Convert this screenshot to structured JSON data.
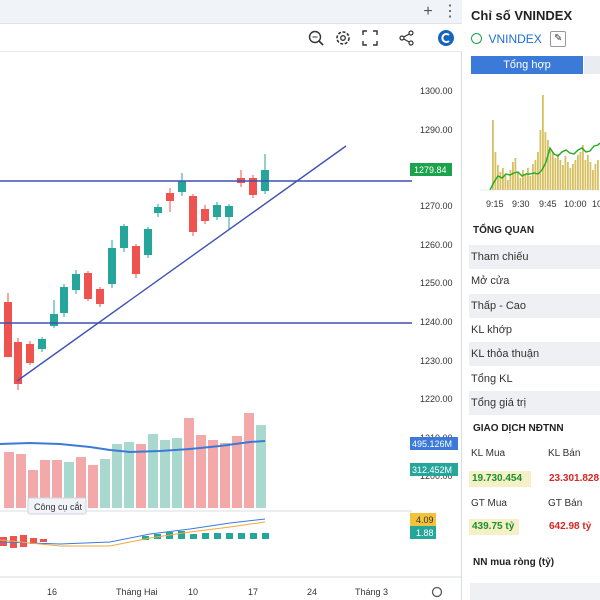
{
  "window": {
    "add_tab_label": "+",
    "menu_label": "⋮"
  },
  "chart": {
    "price_labels": [
      "1300.00",
      "1290.00",
      "1270.00",
      "1260.00",
      "1250.00",
      "1240.00",
      "1230.00",
      "1220.00",
      "1210.00",
      "1200.00"
    ],
    "current_price": "1279.84",
    "volume_ma_label": "495.126M",
    "volume_label": "312.452M",
    "macd_label_1": "4.09",
    "macd_label_2": "1.88",
    "x_labels": [
      "16",
      "Tháng Hai",
      "10",
      "17",
      "24",
      "Tháng 3"
    ],
    "tooltip": "Công cụ cắt",
    "colors": {
      "up": "#26a69a",
      "down": "#ef5350",
      "line": "#3f51b5",
      "current": "#1aa34a"
    }
  },
  "info": {
    "title": "Chỉ số VNINDEX",
    "symbol": "VNINDEX",
    "tab_summary": "Tổng hợp",
    "time_labels": [
      "9:15",
      "9:30",
      "9:45",
      "10:00",
      "10:"
    ],
    "overview_title": "TỔNG QUAN",
    "overview_rows": [
      "Tham chiếu",
      "Mở cửa",
      "Thấp - Cao",
      "KL khớp",
      "KL thỏa thuận",
      "Tổng KL",
      "Tổng giá trị"
    ],
    "foreign_title": "GIAO DỊCH NĐTNN",
    "kl_mua_label": "KL Mua",
    "kl_ban_label": "KL Bán",
    "kl_mua_value": "19.730.454",
    "kl_ban_value": "23.301.828",
    "gt_mua_label": "GT Mua",
    "gt_ban_label": "GT Bán",
    "gt_mua_value": "439.75 tỷ",
    "gt_ban_value": "642.98 tỷ",
    "net_buy_title": "NN mua ròng (tỷ)"
  }
}
